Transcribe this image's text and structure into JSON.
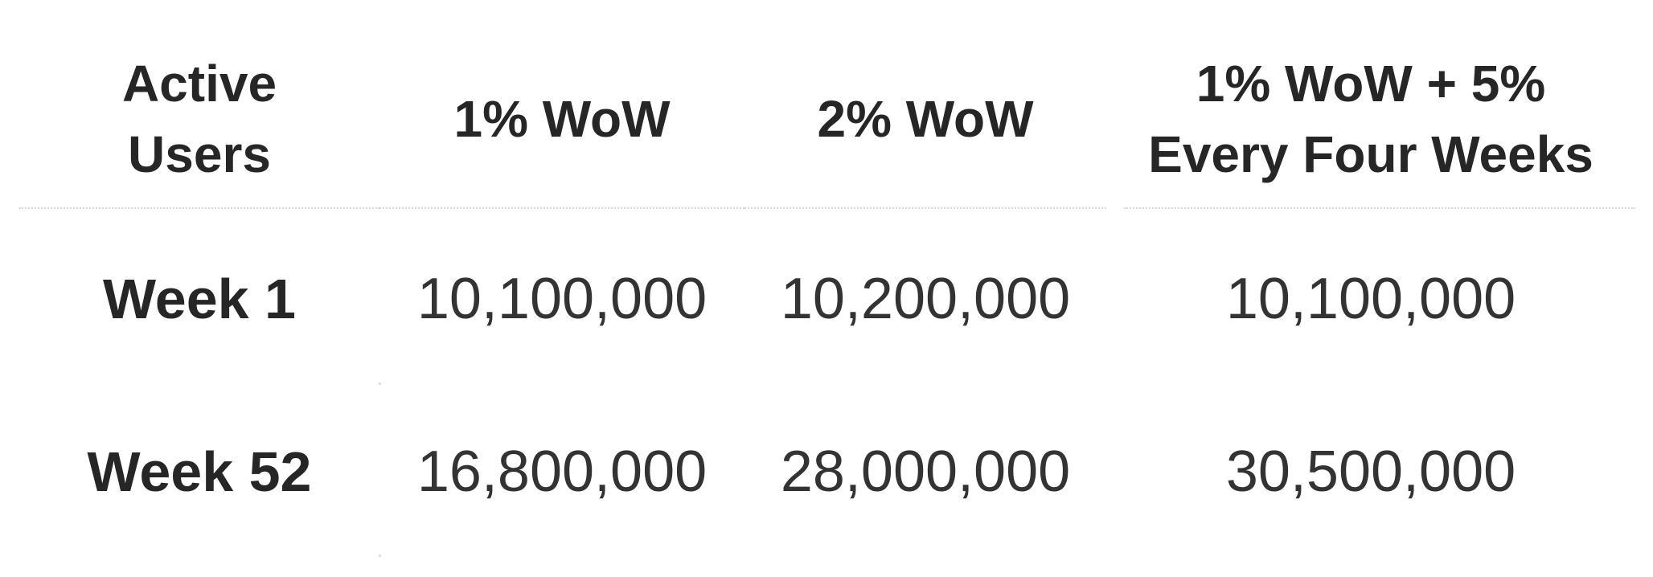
{
  "table": {
    "columns": [
      "Active\nUsers",
      "1% WoW",
      "2% WoW",
      "1% WoW + 5%\nEvery Four Weeks"
    ],
    "rows": [
      {
        "label": "Week 1",
        "values": [
          "10,100,000",
          "10,200,000",
          "10,100,000"
        ]
      },
      {
        "label": "Week 52",
        "values": [
          "16,800,000",
          "28,000,000",
          "30,500,000"
        ]
      }
    ]
  }
}
